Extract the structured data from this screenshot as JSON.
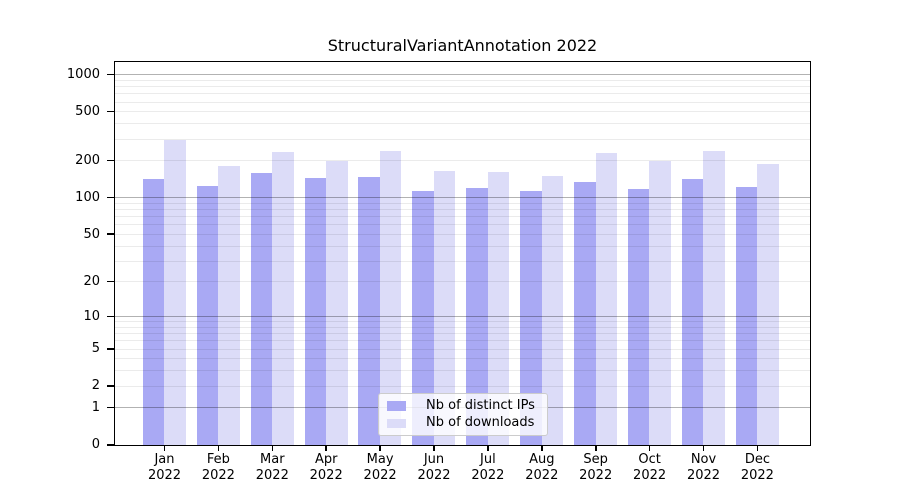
{
  "figure": {
    "background": "#ffffff"
  },
  "chart_data": {
    "type": "bar",
    "title": "StructuralVariantAnnotation 2022",
    "months": [
      "Jan",
      "Feb",
      "Mar",
      "Apr",
      "May",
      "Jun",
      "Jul",
      "Aug",
      "Sep",
      "Oct",
      "Nov",
      "Dec"
    ],
    "year_label": "2022",
    "categories": [
      "Jan 2022",
      "Feb 2022",
      "Mar 2022",
      "Apr 2022",
      "May 2022",
      "Jun 2022",
      "Jul 2022",
      "Aug 2022",
      "Sep 2022",
      "Oct 2022",
      "Nov 2022",
      "Dec 2022"
    ],
    "series": [
      {
        "key": "distinct-ips",
        "name": "Nb of distinct IPs",
        "color": "#a9a9f4",
        "values": [
          141,
          124,
          160,
          144,
          148,
          113,
          120,
          114,
          135,
          118,
          141,
          122
        ]
      },
      {
        "key": "downloads",
        "name": "Nb of downloads",
        "color": "#dcdcf8",
        "values": [
          298,
          181,
          235,
          199,
          240,
          165,
          163,
          150,
          230,
          199,
          240,
          187
        ]
      }
    ],
    "y_axis": {
      "scale": "log1p",
      "tick_values": [
        0,
        1,
        2,
        5,
        10,
        20,
        50,
        100,
        200,
        500,
        1000
      ],
      "tick_labels": [
        "0",
        "1",
        "2",
        "5",
        "10",
        "20",
        "50",
        "100",
        "200",
        "500",
        "1000"
      ],
      "major_gridlines": [
        1,
        10,
        100,
        1000
      ],
      "minor_gridlines": [
        2,
        3,
        4,
        5,
        6,
        7,
        8,
        9,
        20,
        30,
        40,
        50,
        60,
        70,
        80,
        90,
        200,
        300,
        400,
        500,
        600,
        700,
        800,
        900
      ],
      "range_max": 1300
    },
    "legend": {
      "position": "bottom-center"
    },
    "grid": true,
    "colors": {
      "grid_minor": "rgba(0,0,0,0.08)",
      "grid_major": "rgba(0,0,0,0.30)",
      "axis": "#000000",
      "text": "#000000"
    }
  }
}
